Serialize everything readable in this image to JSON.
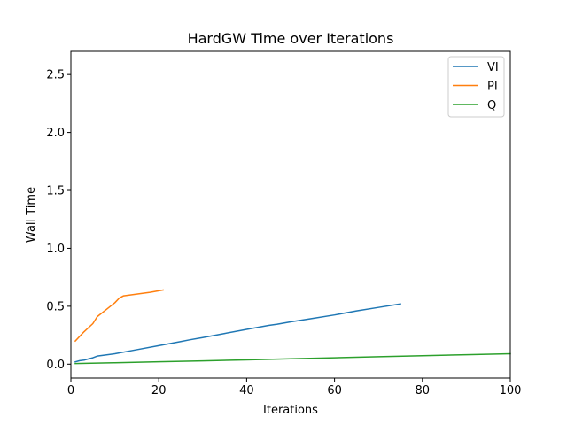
{
  "chart_data": {
    "type": "line",
    "title": "HardGW Time over Iterations",
    "xlabel": "Iterations",
    "ylabel": "Wall Time",
    "xlim": [
      0,
      100
    ],
    "ylim": [
      -0.12,
      2.7
    ],
    "xticks": [
      0,
      20,
      40,
      60,
      80,
      100
    ],
    "yticks": [
      0.0,
      0.5,
      1.0,
      1.5,
      2.0,
      2.5
    ],
    "xtick_labels": [
      "0",
      "20",
      "40",
      "60",
      "80",
      "100"
    ],
    "ytick_labels": [
      "0.0",
      "0.5",
      "1.0",
      "1.5",
      "2.0",
      "2.5"
    ],
    "grid": false,
    "legend_position": "top-right",
    "series": [
      {
        "name": "VI",
        "color": "#1f77b4",
        "x": [
          1,
          2,
          3,
          4,
          5,
          6,
          7,
          10,
          15,
          20,
          25,
          27,
          30,
          35,
          40,
          45,
          47,
          50,
          55,
          60,
          65,
          70,
          75
        ],
        "y": [
          0.02,
          0.03,
          0.035,
          0.045,
          0.055,
          0.07,
          0.075,
          0.09,
          0.125,
          0.16,
          0.195,
          0.21,
          0.23,
          0.265,
          0.3,
          0.335,
          0.345,
          0.365,
          0.395,
          0.425,
          0.46,
          0.49,
          0.52
        ]
      },
      {
        "name": "PI",
        "color": "#ff7f0e",
        "x": [
          1,
          3,
          5,
          6,
          8,
          10,
          11,
          12,
          15,
          18,
          21
        ],
        "y": [
          0.2,
          0.28,
          0.35,
          0.41,
          0.47,
          0.53,
          0.57,
          0.59,
          0.605,
          0.62,
          0.64
        ]
      },
      {
        "name": "Q",
        "color": "#2ca02c",
        "x": [
          1,
          10,
          20,
          30,
          40,
          50,
          60,
          70,
          80,
          90,
          100
        ],
        "y": [
          0.005,
          0.012,
          0.02,
          0.028,
          0.037,
          0.046,
          0.055,
          0.064,
          0.073,
          0.082,
          0.09
        ]
      }
    ]
  }
}
